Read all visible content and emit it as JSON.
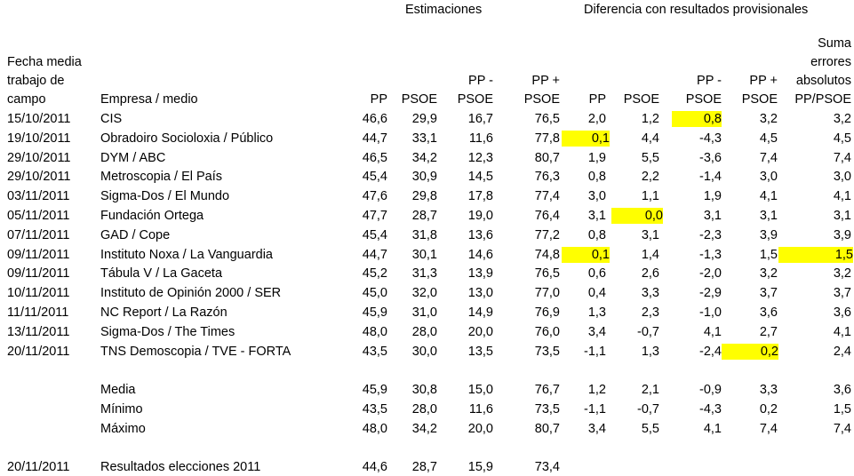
{
  "headers": {
    "group_estimates": "Estimaciones",
    "group_diff": "Diferencia con resultados provisionales",
    "date": [
      "Fecha media",
      "trabajo de",
      "campo"
    ],
    "company": "Empresa / medio",
    "pp": "PP",
    "psoe": "PSOE",
    "pp_minus_psoe": [
      "PP -",
      "PSOE"
    ],
    "pp_plus_psoe": [
      "PP +",
      "PSOE"
    ],
    "d_pp": "PP",
    "d_psoe": "PSOE",
    "d_pp_minus_psoe": [
      "PP -",
      "PSOE"
    ],
    "d_pp_plus_psoe": [
      "PP +",
      "PSOE"
    ],
    "sum_errors": [
      "Suma",
      "errores",
      "absolutos",
      "PP/PSOE"
    ]
  },
  "rows": [
    {
      "date": "15/10/2011",
      "company": "CIS",
      "pp": "46,6",
      "psoe": "29,9",
      "diff": "16,7",
      "sum": "76,5",
      "dpp": "2,0",
      "dpsoe": "1,2",
      "ddiff": "0,8",
      "dsum": "3,2",
      "err": "3,2"
    },
    {
      "date": "19/10/2011",
      "company": "Obradoiro Socioloxia / Público",
      "pp": "44,7",
      "psoe": "33,1",
      "diff": "11,6",
      "sum": "77,8",
      "dpp": "0,1",
      "dpsoe": "4,4",
      "ddiff": "-4,3",
      "dsum": "4,5",
      "err": "4,5"
    },
    {
      "date": "29/10/2011",
      "company": "DYM / ABC",
      "pp": "46,5",
      "psoe": "34,2",
      "diff": "12,3",
      "sum": "80,7",
      "dpp": "1,9",
      "dpsoe": "5,5",
      "ddiff": "-3,6",
      "dsum": "7,4",
      "err": "7,4"
    },
    {
      "date": "29/10/2011",
      "company": "Metroscopia / El País",
      "pp": "45,4",
      "psoe": "30,9",
      "diff": "14,5",
      "sum": "76,3",
      "dpp": "0,8",
      "dpsoe": "2,2",
      "ddiff": "-1,4",
      "dsum": "3,0",
      "err": "3,0"
    },
    {
      "date": "03/11/2011",
      "company": "Sigma-Dos / El Mundo",
      "pp": "47,6",
      "psoe": "29,8",
      "diff": "17,8",
      "sum": "77,4",
      "dpp": "3,0",
      "dpsoe": "1,1",
      "ddiff": "1,9",
      "dsum": "4,1",
      "err": "4,1"
    },
    {
      "date": "05/11/2011",
      "company": "Fundación Ortega",
      "pp": "47,7",
      "psoe": "28,7",
      "diff": "19,0",
      "sum": "76,4",
      "dpp": "3,1",
      "dpsoe": "0,0",
      "ddiff": "3,1",
      "dsum": "3,1",
      "err": "3,1"
    },
    {
      "date": "07/11/2011",
      "company": "GAD / Cope",
      "pp": "45,4",
      "psoe": "31,8",
      "diff": "13,6",
      "sum": "77,2",
      "dpp": "0,8",
      "dpsoe": "3,1",
      "ddiff": "-2,3",
      "dsum": "3,9",
      "err": "3,9"
    },
    {
      "date": "09/11/2011",
      "company": "Instituto Noxa / La Vanguardia",
      "pp": "44,7",
      "psoe": "30,1",
      "diff": "14,6",
      "sum": "74,8",
      "dpp": "0,1",
      "dpsoe": "1,4",
      "ddiff": "-1,3",
      "dsum": "1,5",
      "err": "1,5"
    },
    {
      "date": "09/11/2011",
      "company": "Tábula V / La Gaceta",
      "pp": "45,2",
      "psoe": "31,3",
      "diff": "13,9",
      "sum": "76,5",
      "dpp": "0,6",
      "dpsoe": "2,6",
      "ddiff": "-2,0",
      "dsum": "3,2",
      "err": "3,2"
    },
    {
      "date": "10/11/2011",
      "company": "Instituto de Opinión 2000 / SER",
      "pp": "45,0",
      "psoe": "32,0",
      "diff": "13,0",
      "sum": "77,0",
      "dpp": "0,4",
      "dpsoe": "3,3",
      "ddiff": "-2,9",
      "dsum": "3,7",
      "err": "3,7"
    },
    {
      "date": "11/11/2011",
      "company": "NC Report / La Razón",
      "pp": "45,9",
      "psoe": "31,0",
      "diff": "14,9",
      "sum": "76,9",
      "dpp": "1,3",
      "dpsoe": "2,3",
      "ddiff": "-1,0",
      "dsum": "3,6",
      "err": "3,6"
    },
    {
      "date": "13/11/2011",
      "company": "Sigma-Dos / The Times",
      "pp": "48,0",
      "psoe": "28,0",
      "diff": "20,0",
      "sum": "76,0",
      "dpp": "3,4",
      "dpsoe": "-0,7",
      "ddiff": "4,1",
      "dsum": "2,7",
      "err": "4,1"
    },
    {
      "date": "20/11/2011",
      "company": "TNS Demoscopia / TVE - FORTA",
      "pp": "43,5",
      "psoe": "30,0",
      "diff": "13,5",
      "sum": "73,5",
      "dpp": "-1,1",
      "dpsoe": "1,3",
      "ddiff": "-2,4",
      "dsum": "0,2",
      "err": "2,4"
    }
  ],
  "highlights": [
    {
      "row": 0,
      "col": "ddiff"
    },
    {
      "row": 1,
      "col": "dpp"
    },
    {
      "row": 5,
      "col": "dpsoe"
    },
    {
      "row": 7,
      "col": "dpp"
    },
    {
      "row": 7,
      "col": "err"
    },
    {
      "row": 12,
      "col": "dsum"
    }
  ],
  "highlight_color": "#ffff00",
  "summary": [
    {
      "label": "Media",
      "pp": "45,9",
      "psoe": "30,8",
      "diff": "15,0",
      "sum": "76,7",
      "dpp": "1,2",
      "dpsoe": "2,1",
      "ddiff": "-0,9",
      "dsum": "3,3",
      "err": "3,6"
    },
    {
      "label": "Mínimo",
      "pp": "43,5",
      "psoe": "28,0",
      "diff": "11,6",
      "sum": "73,5",
      "dpp": "-1,1",
      "dpsoe": "-0,7",
      "ddiff": "-4,3",
      "dsum": "0,2",
      "err": "1,5"
    },
    {
      "label": "Máximo",
      "pp": "48,0",
      "psoe": "34,2",
      "diff": "20,0",
      "sum": "80,7",
      "dpp": "3,4",
      "dpsoe": "5,5",
      "ddiff": "4,1",
      "dsum": "7,4",
      "err": "7,4"
    }
  ],
  "results": {
    "date": "20/11/2011",
    "label": "Resultados elecciones 2011",
    "pp": "44,6",
    "psoe": "28,7",
    "diff": "15,9",
    "sum": "73,4"
  }
}
